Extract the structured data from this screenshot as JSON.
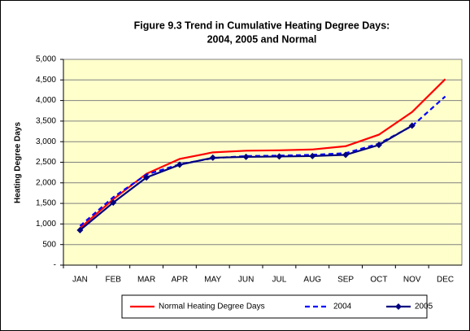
{
  "chart_data": {
    "type": "line",
    "title": [
      "Figure 9.3  Trend in Cumulative Heating Degree Days:",
      "2004, 2005 and Normal"
    ],
    "y_label": "Heating Degree Days",
    "categories": [
      "JAN",
      "FEB",
      "MAR",
      "APR",
      "MAY",
      "JUN",
      "JUL",
      "AUG",
      "SEP",
      "OCT",
      "NOV",
      "DEC"
    ],
    "series": [
      {
        "name": "Normal Heating Degree Days",
        "color": "#ff0000",
        "style": "solid",
        "marker": false,
        "values": [
          900,
          1600,
          2220,
          2580,
          2740,
          2780,
          2790,
          2810,
          2890,
          3170,
          3720,
          4520
        ]
      },
      {
        "name": "2004",
        "color": "#0000ff",
        "style": "dashed",
        "marker": false,
        "values": [
          950,
          1650,
          2200,
          2450,
          2600,
          2650,
          2660,
          2680,
          2720,
          2950,
          3380,
          4100
        ]
      },
      {
        "name": "2005",
        "color": "#000080",
        "style": "solid",
        "marker": true,
        "values": [
          850,
          1520,
          2130,
          2440,
          2610,
          2630,
          2640,
          2650,
          2680,
          2920,
          3390,
          null
        ]
      }
    ],
    "ylim": [
      0,
      5000
    ],
    "yticks": [
      {
        "value": 0,
        "label": "-"
      },
      500,
      {
        "value": 1000,
        "label": "1,000"
      },
      {
        "value": 1500,
        "label": "1,500"
      },
      {
        "value": 2000,
        "label": "2,000"
      },
      {
        "value": 2500,
        "label": "2,500"
      },
      {
        "value": 3000,
        "label": "3,000"
      },
      {
        "value": 3500,
        "label": "3,500"
      },
      {
        "value": 4000,
        "label": "4,000"
      },
      {
        "value": 4500,
        "label": "4,500"
      },
      {
        "value": 5000,
        "label": "5,000"
      }
    ],
    "grid": true,
    "plot_background": "#ffffcc",
    "legend": "bottom"
  }
}
